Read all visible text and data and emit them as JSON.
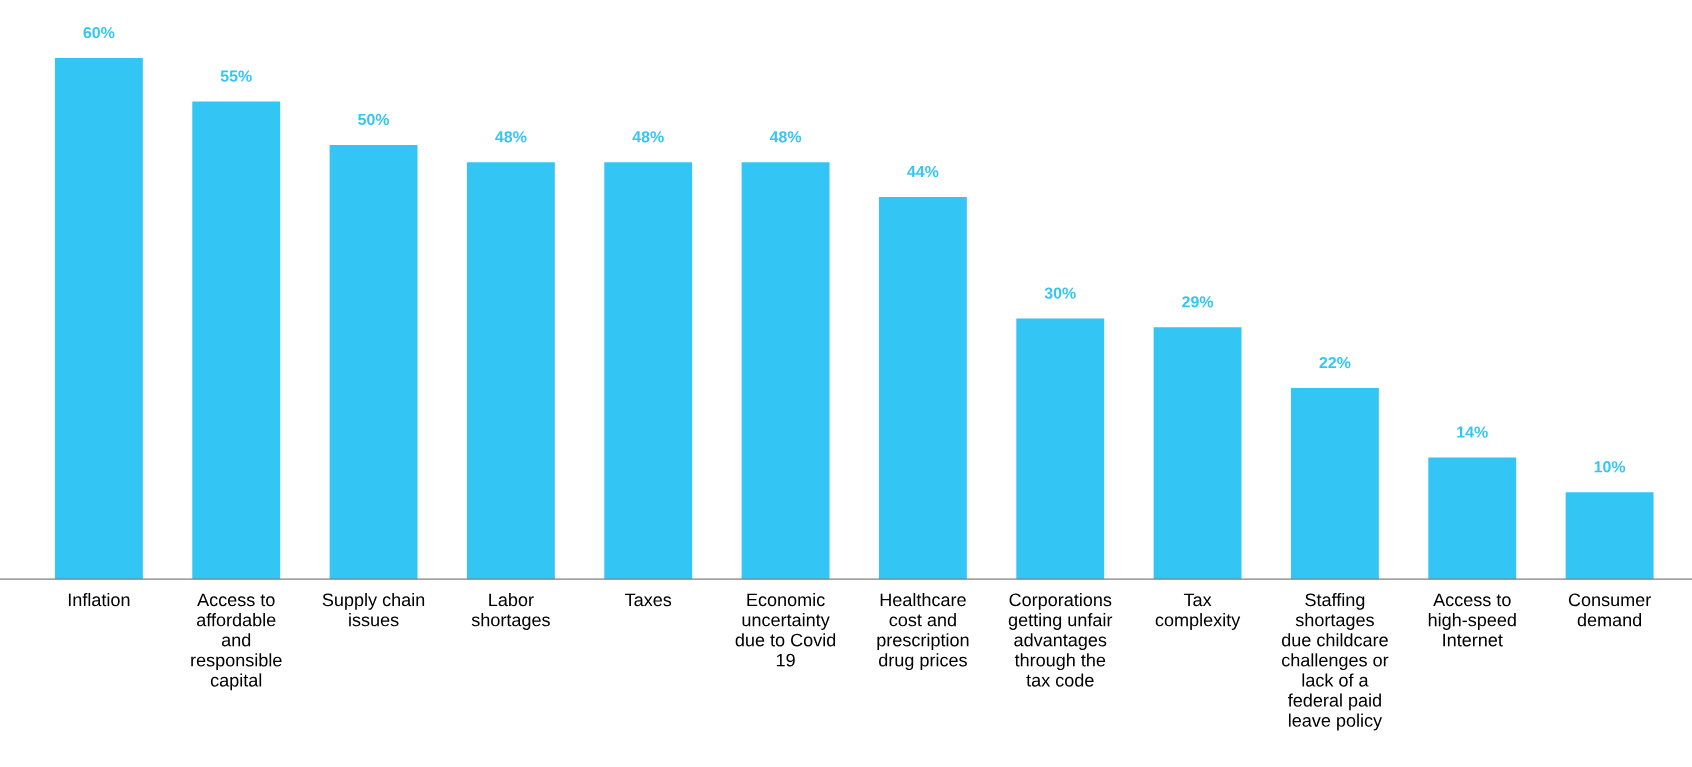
{
  "chart_data": {
    "type": "bar",
    "categories": [
      "Inflation",
      "Access to\naffordable\nand\nresponsible\ncapital",
      "Supply chain\nissues",
      "Labor\nshortages",
      "Taxes",
      "Economic\nuncertainty\ndue to Covid\n19",
      "Healthcare\ncost and\nprescription\ndrug prices",
      "Corporations\ngetting unfair\nadvantages\nthrough the\ntax code",
      "Tax\ncomplexity",
      "Staffing\nshortages\ndue childcare\nchallenges or\nlack of a\nfederal paid\nleave policy",
      "Access to\nhigh-speed\nInternet",
      "Consumer\ndemand"
    ],
    "values": [
      60,
      55,
      50,
      48,
      48,
      48,
      44,
      30,
      29,
      22,
      14,
      10
    ],
    "value_labels": [
      "60%",
      "55%",
      "50%",
      "48%",
      "48%",
      "48%",
      "44%",
      "30%",
      "29%",
      "22%",
      "14%",
      "10%"
    ],
    "color": "#33c6f4",
    "tick_labels": "x",
    "grid": false,
    "legend": false
  }
}
